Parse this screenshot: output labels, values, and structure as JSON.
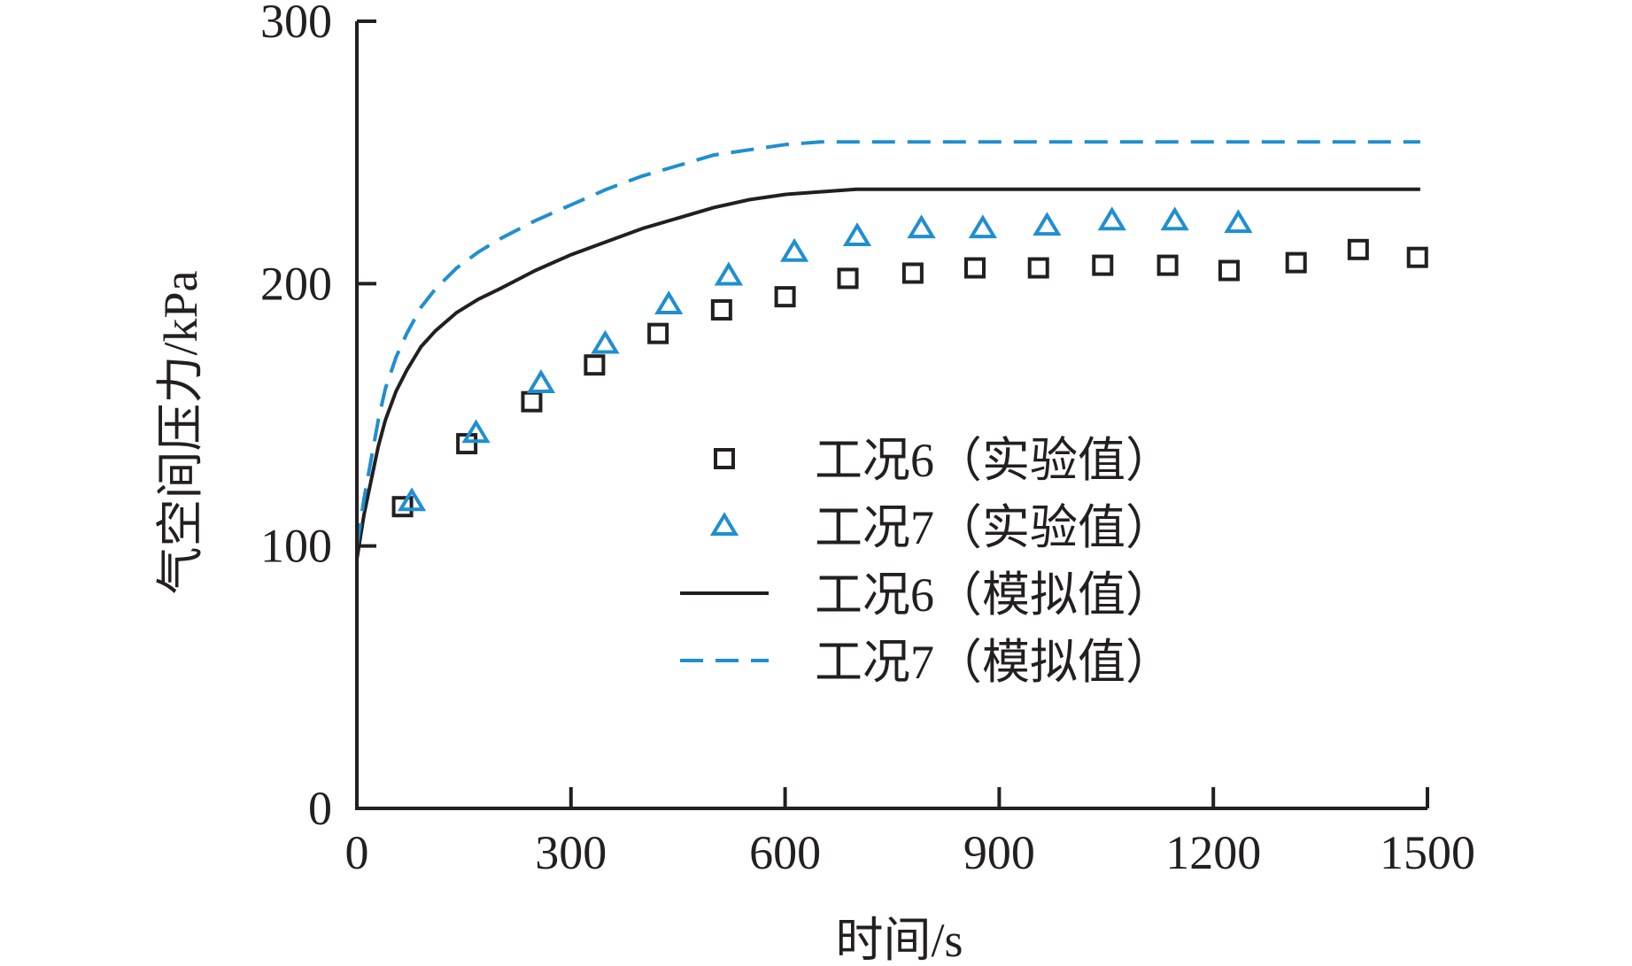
{
  "chart_data": {
    "type": "scatter",
    "title": "",
    "xlabel": "时间/s",
    "ylabel": "气空间压力/kPa",
    "xlim": [
      0,
      1500
    ],
    "ylim": [
      0,
      300
    ],
    "xticks": [
      "0",
      "300",
      "600",
      "900",
      "1200",
      "1500"
    ],
    "yticks": [
      "0",
      "100",
      "200",
      "300"
    ],
    "xtick_values": [
      0,
      300,
      600,
      900,
      1200,
      1500
    ],
    "ytick_values": [
      0,
      100,
      200,
      300
    ],
    "grid": false,
    "legend_position": "center-right",
    "colors": {
      "black": "#231f20",
      "blue": "#1f8fd0"
    },
    "series": [
      {
        "name": "工况6（实验值）",
        "kind": "markers",
        "marker": "square",
        "color": "#231f20",
        "x": [
          64,
          154,
          245,
          333,
          422,
          511,
          600,
          688,
          779,
          866,
          955,
          1045,
          1136,
          1222,
          1316,
          1403,
          1486
        ],
        "y": [
          115,
          139,
          155,
          169,
          181,
          190,
          195,
          202,
          204,
          206,
          206,
          207,
          207,
          205,
          208,
          213,
          210
        ]
      },
      {
        "name": "工况7（实验值）",
        "kind": "markers",
        "marker": "triangle",
        "color": "#1f8fd0",
        "x": [
          77,
          167,
          258,
          348,
          437,
          521,
          613,
          701,
          791,
          877,
          967,
          1058,
          1146,
          1235
        ],
        "y": [
          117,
          143,
          162,
          177,
          192,
          203,
          212,
          218,
          221,
          221,
          222,
          224,
          224,
          223
        ]
      },
      {
        "name": "工况6（模拟值）",
        "kind": "line",
        "dash": "solid",
        "color": "#231f20",
        "x": [
          0,
          10,
          20,
          30,
          40,
          55,
          70,
          90,
          110,
          140,
          170,
          200,
          250,
          300,
          350,
          400,
          450,
          500,
          550,
          600,
          650,
          700,
          800,
          900,
          1000,
          1100,
          1200,
          1300,
          1400,
          1490
        ],
        "y": [
          95,
          112,
          125,
          138,
          148,
          159,
          167,
          176,
          182,
          189,
          194,
          198,
          205,
          211,
          216,
          221,
          225,
          229,
          232,
          234,
          235,
          236,
          236,
          236,
          236,
          236,
          236,
          236,
          236,
          236
        ]
      },
      {
        "name": "工况7（模拟值）",
        "kind": "line",
        "dash": "dashed",
        "color": "#1f8fd0",
        "x": [
          0,
          10,
          20,
          30,
          40,
          55,
          70,
          90,
          110,
          140,
          170,
          200,
          250,
          300,
          350,
          400,
          450,
          500,
          550,
          600,
          650,
          700,
          800,
          900,
          1000,
          1100,
          1200,
          1300,
          1400,
          1490
        ],
        "y": [
          100,
          118,
          133,
          148,
          160,
          172,
          181,
          191,
          198,
          206,
          212,
          217,
          224,
          230,
          236,
          241,
          245,
          249,
          251,
          253,
          254,
          254,
          254,
          254,
          254,
          254,
          254,
          254,
          254,
          254
        ]
      }
    ]
  }
}
